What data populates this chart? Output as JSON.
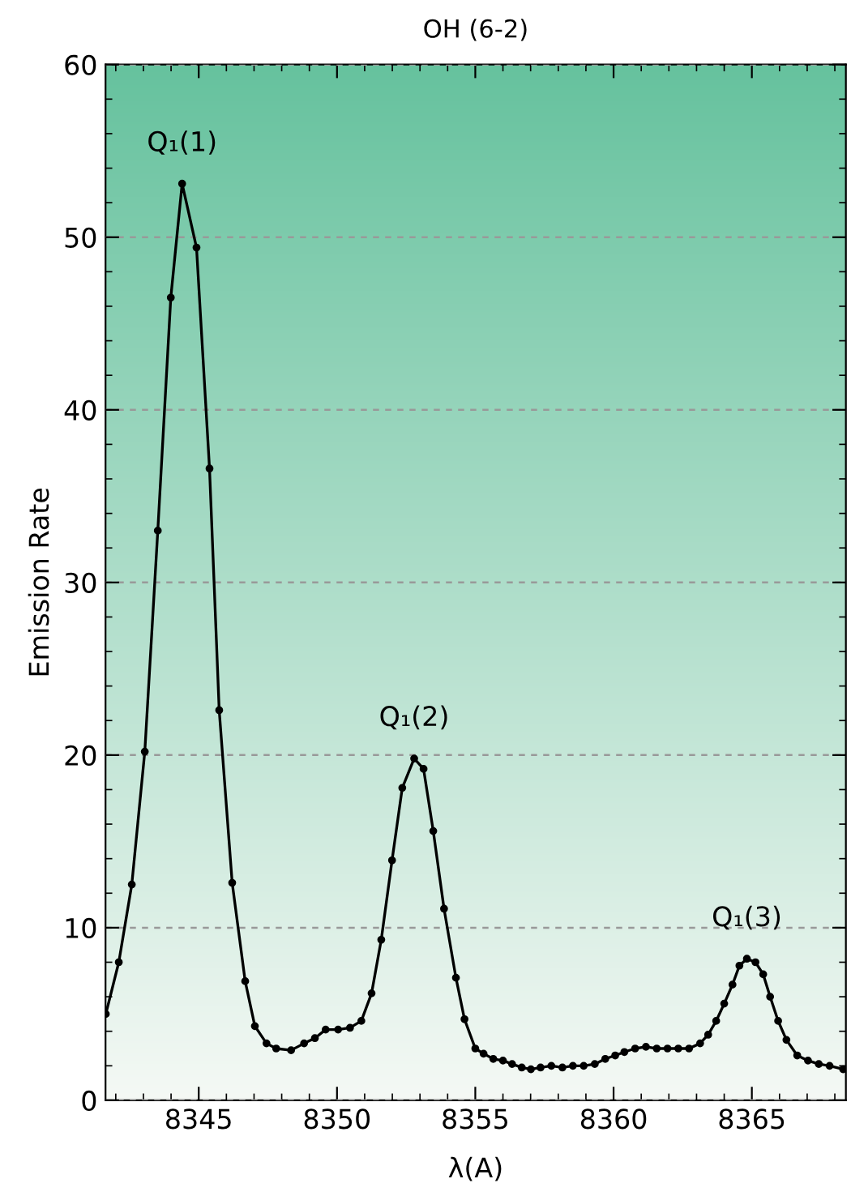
{
  "chart_data": {
    "type": "line",
    "title": "OH (6-2)",
    "xlabel": "λ(A)",
    "ylabel": "Emission Rate",
    "x": [
      8341.64,
      8342.11,
      8342.58,
      8343.05,
      8343.52,
      8343.99,
      8344.4,
      8344.92,
      8345.39,
      8345.74,
      8346.21,
      8346.68,
      8347.03,
      8347.45,
      8347.8,
      8348.34,
      8348.81,
      8349.2,
      8349.59,
      8350.04,
      8350.47,
      8350.88,
      8351.25,
      8351.6,
      8351.99,
      8352.36,
      8352.79,
      8353.13,
      8353.48,
      8353.87,
      8354.3,
      8354.61,
      8355.0,
      8355.3,
      8355.65,
      8356.0,
      8356.33,
      8356.68,
      8357.01,
      8357.36,
      8357.75,
      8358.15,
      8358.53,
      8358.92,
      8359.32,
      8359.7,
      8360.06,
      8360.39,
      8360.78,
      8361.17,
      8361.56,
      8361.95,
      8362.34,
      8362.73,
      8363.13,
      8363.42,
      8363.71,
      8364.0,
      8364.3,
      8364.55,
      8364.82,
      8365.13,
      8365.41,
      8365.66,
      8365.95,
      8366.25,
      8366.64,
      8367.03,
      8367.42,
      8367.81,
      8368.3
    ],
    "series": [
      {
        "color": "#000000",
        "values": [
          5.0,
          8.0,
          12.5,
          20.2,
          33.0,
          46.5,
          53.1,
          49.4,
          36.6,
          22.6,
          12.6,
          6.9,
          4.3,
          3.3,
          3.0,
          2.9,
          3.3,
          3.6,
          4.1,
          4.1,
          4.2,
          4.6,
          6.2,
          9.3,
          13.9,
          18.1,
          19.8,
          19.2,
          15.6,
          11.1,
          7.1,
          4.7,
          3.0,
          2.7,
          2.4,
          2.3,
          2.1,
          1.9,
          1.8,
          1.9,
          2.0,
          1.9,
          2.0,
          2.0,
          2.1,
          2.4,
          2.6,
          2.8,
          3.0,
          3.1,
          3.0,
          3.0,
          3.0,
          3.0,
          3.3,
          3.8,
          4.6,
          5.6,
          6.7,
          7.8,
          8.2,
          8.0,
          7.3,
          6.0,
          4.6,
          3.5,
          2.6,
          2.3,
          2.1,
          2.0,
          1.8
        ]
      }
    ],
    "xlim": [
      8341.63,
      8368.4
    ],
    "ylim": [
      0,
      60
    ],
    "xticks": [
      8345,
      8350,
      8355,
      8360,
      8365
    ],
    "yticks": [
      0,
      10,
      20,
      30,
      40,
      50,
      60
    ],
    "grid": "y",
    "marker": "circle",
    "line_style": "solid",
    "annotations": [
      "Q₁(1)",
      "Q₁(2)",
      "Q₁(3)"
    ]
  }
}
